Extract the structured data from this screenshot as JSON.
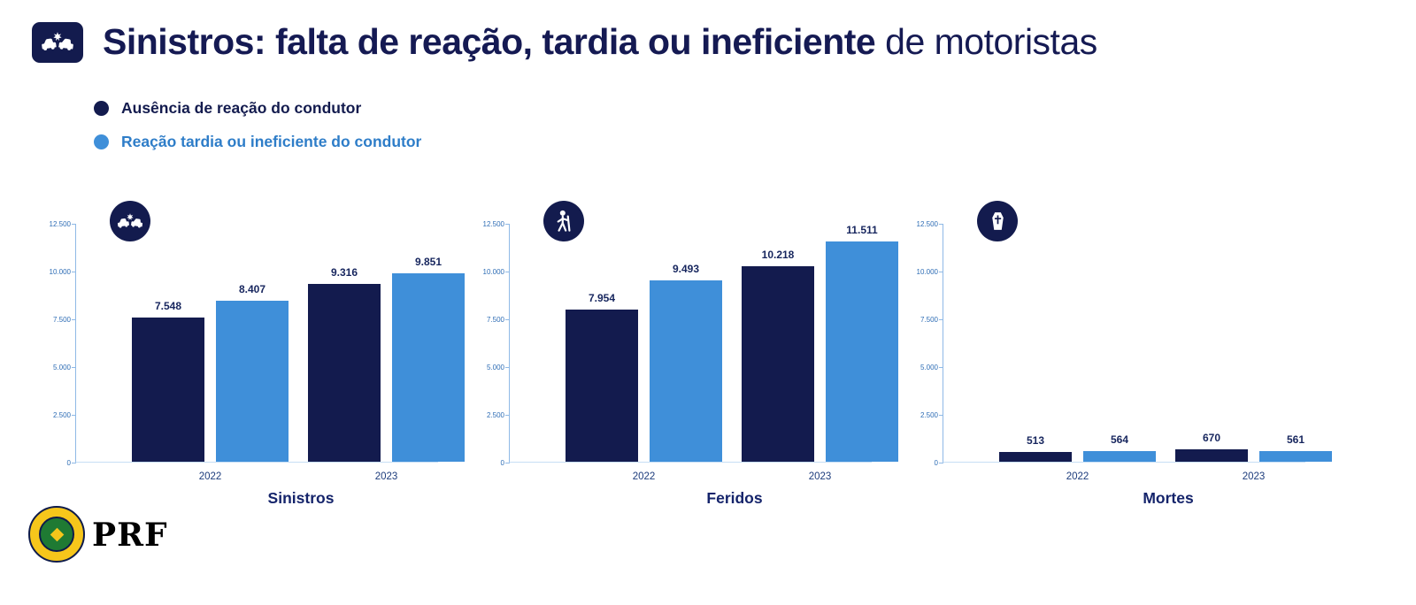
{
  "header": {
    "title_prefix": "Sinistros:",
    "title_emphasis": "falta de reação, tardia ou ineficiente",
    "title_suffix": "de motoristas"
  },
  "legend": {
    "items": [
      {
        "label": "Ausência de reação do condutor",
        "color": "#131b4e"
      },
      {
        "label": "Reação tardia ou ineficiente do condutor",
        "color": "#3f8fd9"
      }
    ]
  },
  "footer": {
    "brand": "PRF"
  },
  "colors": {
    "dark_series": "#131b4e",
    "light_series": "#3f8fd9",
    "title_navy": "#151a53"
  },
  "chart_data": [
    {
      "type": "bar",
      "title": "Sinistros",
      "icon": "car-crash-icon",
      "categories": [
        "2022",
        "2023"
      ],
      "series": [
        {
          "name": "Ausência de reação do condutor",
          "color": "#131b4e",
          "values": [
            7548,
            9316
          ],
          "labels": [
            "7.548",
            "9.316"
          ]
        },
        {
          "name": "Reação tardia ou ineficiente do condutor",
          "color": "#3f8fd9",
          "values": [
            8407,
            9851
          ],
          "labels": [
            "8.407",
            "9.851"
          ]
        }
      ],
      "ylim": [
        0,
        12500
      ],
      "yticks": [
        {
          "value": 0,
          "label": "0"
        },
        {
          "value": 2500,
          "label": "2.500"
        },
        {
          "value": 5000,
          "label": "5.000"
        },
        {
          "value": 7500,
          "label": "7.500"
        },
        {
          "value": 10000,
          "label": "10.000"
        },
        {
          "value": 12500,
          "label": "12.500"
        }
      ]
    },
    {
      "type": "bar",
      "title": "Feridos",
      "icon": "injured-person-icon",
      "categories": [
        "2022",
        "2023"
      ],
      "series": [
        {
          "name": "Ausência de reação do condutor",
          "color": "#131b4e",
          "values": [
            7954,
            10218
          ],
          "labels": [
            "7.954",
            "10.218"
          ]
        },
        {
          "name": "Reação tardia ou ineficiente do condutor",
          "color": "#3f8fd9",
          "values": [
            9493,
            11511
          ],
          "labels": [
            "9.493",
            "11.511"
          ]
        }
      ],
      "ylim": [
        0,
        12500
      ],
      "yticks": [
        {
          "value": 0,
          "label": "0"
        },
        {
          "value": 2500,
          "label": "2.500"
        },
        {
          "value": 5000,
          "label": "5.000"
        },
        {
          "value": 7500,
          "label": "7.500"
        },
        {
          "value": 10000,
          "label": "10.000"
        },
        {
          "value": 12500,
          "label": "12.500"
        }
      ]
    },
    {
      "type": "bar",
      "title": "Mortes",
      "icon": "coffin-icon",
      "categories": [
        "2022",
        "2023"
      ],
      "series": [
        {
          "name": "Ausência de reação do condutor",
          "color": "#131b4e",
          "values": [
            513,
            670
          ],
          "labels": [
            "513",
            "670"
          ]
        },
        {
          "name": "Reação tardia ou ineficiente do condutor",
          "color": "#3f8fd9",
          "values": [
            564,
            561
          ],
          "labels": [
            "564",
            "561"
          ]
        }
      ],
      "ylim": [
        0,
        12500
      ],
      "yticks": [
        {
          "value": 0,
          "label": "0"
        },
        {
          "value": 2500,
          "label": "2.500"
        },
        {
          "value": 5000,
          "label": "5.000"
        },
        {
          "value": 7500,
          "label": "7.500"
        },
        {
          "value": 10000,
          "label": "10.000"
        },
        {
          "value": 12500,
          "label": "12.500"
        }
      ]
    }
  ]
}
